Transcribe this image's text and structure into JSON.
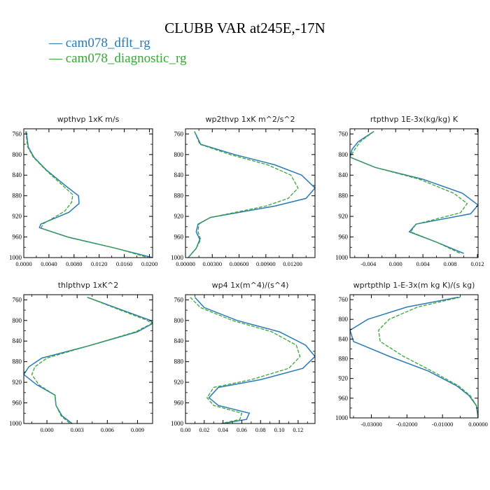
{
  "title": "CLUBB VAR at245E,-17N",
  "colors": {
    "dflt": "#2a7ab5",
    "diag": "#3aa53a"
  },
  "legend": [
    {
      "name": "cam078_dflt_rg",
      "color": "#2a7ab5"
    },
    {
      "name": "cam078_diagnostic_rg",
      "color": "#3aa53a"
    }
  ],
  "chart_data": [
    {
      "type": "line",
      "title": "wpthvp   1xK m/s",
      "xlim": [
        0,
        0.0205
      ],
      "xticks": [
        0,
        0.004,
        0.008,
        0.012,
        0.016,
        0.02
      ],
      "xtick_labels": [
        "0.0000",
        "0.0040",
        "0.0080",
        "0.0120",
        "0.0160",
        "0.0200"
      ],
      "ylim": [
        1000,
        750
      ],
      "yticks": [
        760,
        800,
        840,
        880,
        920,
        960,
        1000
      ],
      "series": [
        {
          "name": "cam078_dflt_rg",
          "x": [
            0.0004,
            0.0007,
            0.0016,
            0.0036,
            0.0066,
            0.0087,
            0.0088,
            0.0072,
            0.0027,
            0.0025,
            0.007,
            0.014,
            0.0205
          ],
          "y": [
            755,
            785,
            805,
            830,
            860,
            880,
            895,
            912,
            935,
            942,
            960,
            980,
            1000
          ]
        },
        {
          "name": "cam078_diagnostic_rg",
          "x": [
            0.0003,
            0.0006,
            0.0015,
            0.0035,
            0.0062,
            0.0078,
            0.0076,
            0.0065,
            0.003,
            0.0028,
            0.0075,
            0.015,
            0.0198
          ],
          "y": [
            755,
            785,
            805,
            830,
            860,
            878,
            893,
            910,
            935,
            943,
            962,
            983,
            1000
          ]
        }
      ]
    },
    {
      "type": "line",
      "title": "wp2thvp   1xK m^2/s^2",
      "xlim": [
        0,
        0.0145
      ],
      "xticks": [
        0,
        0.003,
        0.006,
        0.009,
        0.012
      ],
      "xtick_labels": [
        "0.00000",
        "0.00300",
        "0.00600",
        "0.00900",
        "0.01200"
      ],
      "ylim": [
        1000,
        750
      ],
      "yticks": [
        760,
        800,
        840,
        880,
        920,
        960,
        1000
      ],
      "series": [
        {
          "name": "cam078_dflt_rg",
          "x": [
            0.001,
            0.0017,
            0.0055,
            0.01,
            0.013,
            0.0145,
            0.0135,
            0.01,
            0.0028,
            0.0014,
            0.0012,
            0.0016,
            0.0012,
            0.0003
          ],
          "y": [
            755,
            780,
            800,
            820,
            840,
            865,
            885,
            900,
            922,
            935,
            950,
            965,
            982,
            1000
          ]
        },
        {
          "name": "cam078_diagnostic_rg",
          "x": [
            0.001,
            0.0016,
            0.005,
            0.0092,
            0.0118,
            0.0126,
            0.0115,
            0.009,
            0.0028,
            0.0015,
            0.0014,
            0.0017,
            0.0012,
            0.0003
          ],
          "y": [
            755,
            780,
            800,
            820,
            840,
            865,
            885,
            900,
            922,
            935,
            950,
            965,
            982,
            1000
          ]
        }
      ]
    },
    {
      "type": "line",
      "title": "rtpthvp   1E-3x(kg/kg) K",
      "xlim": [
        -0.0067,
        0.0121
      ],
      "xticks": [
        -0.004,
        0,
        0.004,
        0.008,
        0.012
      ],
      "xtick_labels": [
        "-0.004",
        "0.000",
        "0.004",
        "0.008",
        "0.012"
      ],
      "ylim": [
        1000,
        750
      ],
      "yticks": [
        760,
        800,
        840,
        880,
        920,
        960,
        1000
      ],
      "series": [
        {
          "name": "cam078_dflt_rg",
          "x": [
            -0.0032,
            -0.0055,
            -0.0064,
            -0.0067,
            -0.003,
            0.004,
            0.0098,
            0.0121,
            0.011,
            0.003,
            0.002,
            0.006,
            0.01
          ],
          "y": [
            755,
            775,
            790,
            805,
            825,
            848,
            875,
            898,
            915,
            935,
            950,
            970,
            992
          ]
        },
        {
          "name": "cam078_diagnostic_rg",
          "x": [
            -0.0032,
            -0.0052,
            -0.006,
            -0.0067,
            -0.003,
            0.0035,
            0.0085,
            0.0105,
            0.0095,
            0.003,
            0.0022,
            0.006,
            0.0095
          ],
          "y": [
            755,
            775,
            790,
            805,
            825,
            848,
            875,
            895,
            913,
            935,
            950,
            970,
            992
          ]
        }
      ]
    },
    {
      "type": "line",
      "title": "thlpthvp   1xK^2",
      "xlim": [
        -0.0023,
        0.0105
      ],
      "xticks": [
        0,
        0.003,
        0.006,
        0.009
      ],
      "xtick_labels": [
        "0.000",
        "0.003",
        "0.006",
        "0.009"
      ],
      "ylim": [
        1000,
        750
      ],
      "yticks": [
        760,
        800,
        840,
        880,
        920,
        960,
        1000
      ],
      "series": [
        {
          "name": "cam078_dflt_rg",
          "x": [
            0.004,
            0.0075,
            0.0103,
            0.0105,
            0.009,
            0.004,
            -0.0005,
            -0.0018,
            -0.0023,
            -0.001,
            0.0008,
            0.0009,
            0.0015,
            0.0025
          ],
          "y": [
            755,
            780,
            800,
            806,
            822,
            850,
            873,
            890,
            905,
            925,
            945,
            965,
            985,
            1000
          ]
        },
        {
          "name": "cam078_diagnostic_rg",
          "x": [
            0.004,
            0.0073,
            0.01,
            0.0104,
            0.0088,
            0.004,
            0.0,
            -0.0012,
            -0.0015,
            -0.0008,
            0.0008,
            0.0009,
            0.0014,
            0.0023
          ],
          "y": [
            755,
            780,
            800,
            806,
            822,
            850,
            873,
            890,
            905,
            925,
            945,
            965,
            985,
            1000
          ]
        }
      ]
    },
    {
      "type": "line",
      "title": "wp4   1x(m^4)/(s^4)",
      "xlim": [
        0,
        0.138
      ],
      "xticks": [
        0,
        0.02,
        0.04,
        0.06,
        0.08,
        0.1,
        0.12
      ],
      "xtick_labels": [
        "0.00",
        "0.02",
        "0.04",
        "0.06",
        "0.08",
        "0.10",
        "0.12"
      ],
      "ylim": [
        1000,
        750
      ],
      "yticks": [
        760,
        800,
        840,
        880,
        920,
        960,
        1000
      ],
      "series": [
        {
          "name": "cam078_dflt_rg",
          "x": [
            0.01,
            0.02,
            0.055,
            0.1,
            0.128,
            0.138,
            0.125,
            0.08,
            0.035,
            0.025,
            0.035,
            0.068,
            0.065,
            0.04
          ],
          "y": [
            755,
            775,
            800,
            822,
            848,
            870,
            893,
            915,
            930,
            950,
            965,
            980,
            992,
            1000
          ]
        },
        {
          "name": "cam078_diagnostic_rg",
          "x": [
            0.005,
            0.016,
            0.05,
            0.092,
            0.118,
            0.122,
            0.11,
            0.07,
            0.03,
            0.023,
            0.03,
            0.06,
            0.058,
            0.038
          ],
          "y": [
            755,
            775,
            800,
            822,
            848,
            870,
            893,
            915,
            930,
            950,
            965,
            980,
            992,
            1000
          ]
        }
      ]
    },
    {
      "type": "line",
      "title": "wprtpthlp   1-E-3x(m kg K)/(s kg)",
      "xlim": [
        -0.036,
        0.0
      ],
      "xticks": [
        -0.03,
        -0.02,
        -0.01,
        0
      ],
      "xtick_labels": [
        "-0.03000",
        "-0.02000",
        "-0.01000",
        "0.00000"
      ],
      "ylim": [
        1000,
        750
      ],
      "yticks": [
        760,
        800,
        840,
        880,
        920,
        960,
        1000
      ],
      "series": [
        {
          "name": "cam078_dflt_rg",
          "x": [
            -0.0055,
            -0.02,
            -0.031,
            -0.036,
            -0.035,
            -0.025,
            -0.014,
            -0.006,
            -0.0025,
            -0.0005,
            0.0
          ],
          "y": [
            755,
            775,
            800,
            822,
            845,
            875,
            905,
            935,
            955,
            975,
            1000
          ]
        },
        {
          "name": "cam078_diagnostic_rg",
          "x": [
            -0.005,
            -0.017,
            -0.025,
            -0.028,
            -0.0275,
            -0.021,
            -0.013,
            -0.0055,
            -0.0022,
            -0.0005,
            0.0
          ],
          "y": [
            755,
            775,
            800,
            822,
            845,
            875,
            905,
            935,
            955,
            975,
            1000
          ]
        }
      ]
    }
  ]
}
